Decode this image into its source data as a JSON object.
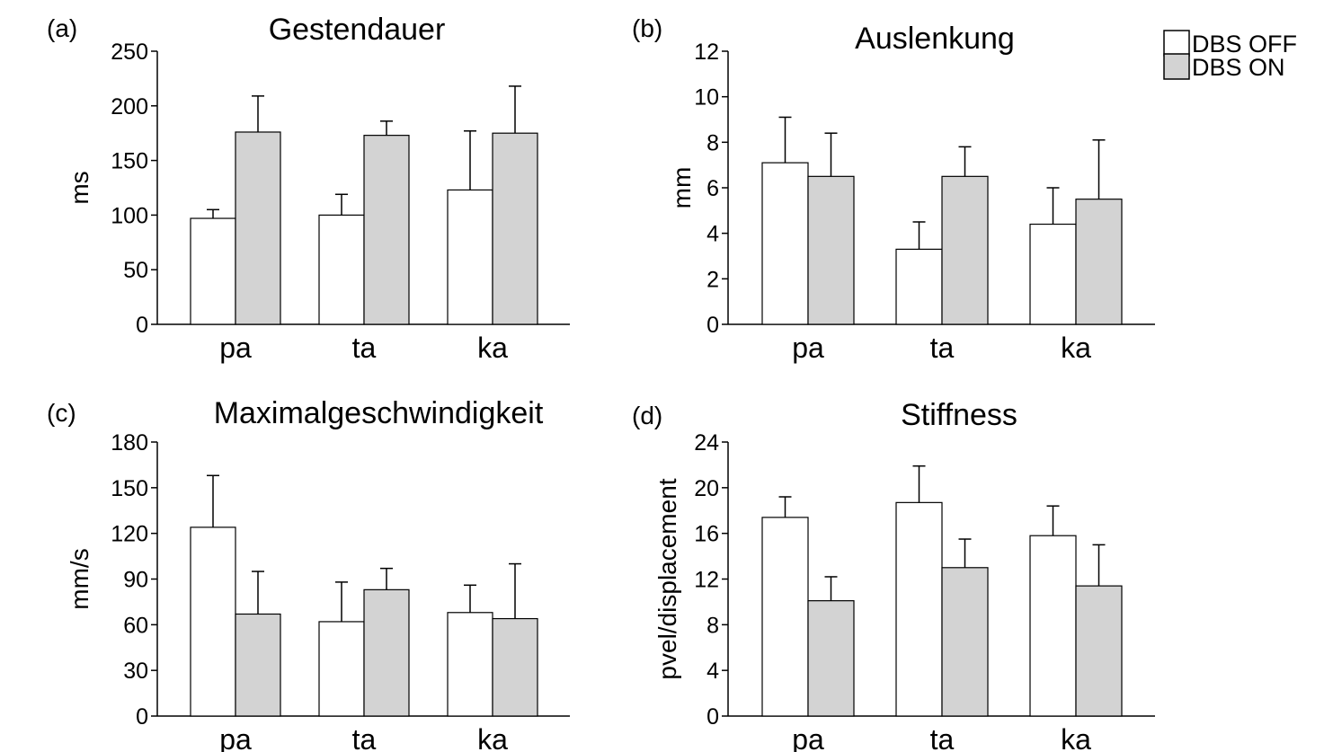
{
  "legend": {
    "items": [
      {
        "label": "DBS OFF",
        "color": "#ffffff"
      },
      {
        "label": "DBS ON",
        "color": "#d3d3d3"
      }
    ]
  },
  "chart_data": [
    {
      "type": "bar",
      "panel_label": "(a)",
      "title": "Gestendauer",
      "ylabel": "ms",
      "categories": [
        "pa",
        "ta",
        "ka"
      ],
      "ylim": [
        0,
        250
      ],
      "yticks": [
        0,
        50,
        100,
        150,
        200,
        250
      ],
      "series": [
        {
          "name": "DBS OFF",
          "values": [
            97,
            100,
            123
          ],
          "errors": [
            8,
            19,
            54
          ]
        },
        {
          "name": "DBS ON",
          "values": [
            176,
            173,
            175
          ],
          "errors": [
            33,
            13,
            43
          ]
        }
      ]
    },
    {
      "type": "bar",
      "panel_label": "(b)",
      "title": "Auslenkung",
      "ylabel": "mm",
      "categories": [
        "pa",
        "ta",
        "ka"
      ],
      "ylim": [
        0,
        12
      ],
      "yticks": [
        0,
        2,
        4,
        6,
        8,
        10,
        12
      ],
      "series": [
        {
          "name": "DBS OFF",
          "values": [
            7.1,
            3.3,
            4.4
          ],
          "errors": [
            2.0,
            1.2,
            1.6
          ]
        },
        {
          "name": "DBS ON",
          "values": [
            6.5,
            6.5,
            5.5
          ],
          "errors": [
            1.9,
            1.3,
            2.6
          ]
        }
      ]
    },
    {
      "type": "bar",
      "panel_label": "(c)",
      "title": "Maximalgeschwindigkeit",
      "ylabel": "mm/s",
      "categories": [
        "pa",
        "ta",
        "ka"
      ],
      "ylim": [
        0,
        180
      ],
      "yticks": [
        0,
        30,
        60,
        90,
        120,
        150,
        180
      ],
      "series": [
        {
          "name": "DBS OFF",
          "values": [
            124,
            62,
            68
          ],
          "errors": [
            34,
            26,
            18
          ]
        },
        {
          "name": "DBS ON",
          "values": [
            67,
            83,
            64
          ],
          "errors": [
            28,
            14,
            36
          ]
        }
      ]
    },
    {
      "type": "bar",
      "panel_label": "(d)",
      "title": "Stiffness",
      "ylabel": "pvel/displacement",
      "categories": [
        "pa",
        "ta",
        "ka"
      ],
      "ylim": [
        0,
        24
      ],
      "yticks": [
        0,
        4,
        8,
        12,
        16,
        20,
        24
      ],
      "series": [
        {
          "name": "DBS OFF",
          "values": [
            17.4,
            18.7,
            15.8
          ],
          "errors": [
            1.8,
            3.2,
            2.6
          ]
        },
        {
          "name": "DBS ON",
          "values": [
            10.1,
            13.0,
            11.4
          ],
          "errors": [
            2.1,
            2.5,
            3.6
          ]
        }
      ]
    }
  ]
}
